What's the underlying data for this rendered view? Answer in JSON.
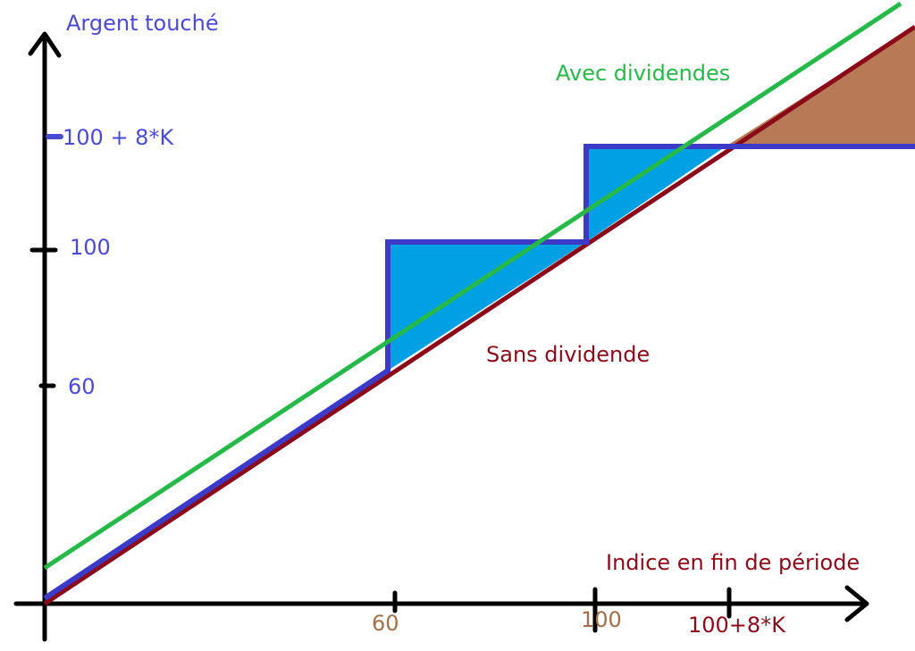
{
  "axes": {
    "y_title": "Argent touché",
    "x_title": "Indice en fin de période"
  },
  "y_ticks": {
    "t60": "60",
    "t100": "100",
    "t100_8k": "100 + 8*K"
  },
  "x_ticks": {
    "t60": "60",
    "t100": "100",
    "t100_8k": "100+8*K"
  },
  "series": {
    "with_dividends": "Avec dividendes",
    "without_dividend": "Sans dividende"
  },
  "colors": {
    "axis": "#000000",
    "y_label": "#4a4ad6",
    "x_title": "#8b0a1a",
    "x_tick_brown": "#a0704a",
    "green_line": "#27b84a",
    "red_line": "#8b0a1a",
    "blue_step": "#3b3bc7",
    "blue_fill": "#00a0e4",
    "brown_fill": "#b87a56"
  }
}
